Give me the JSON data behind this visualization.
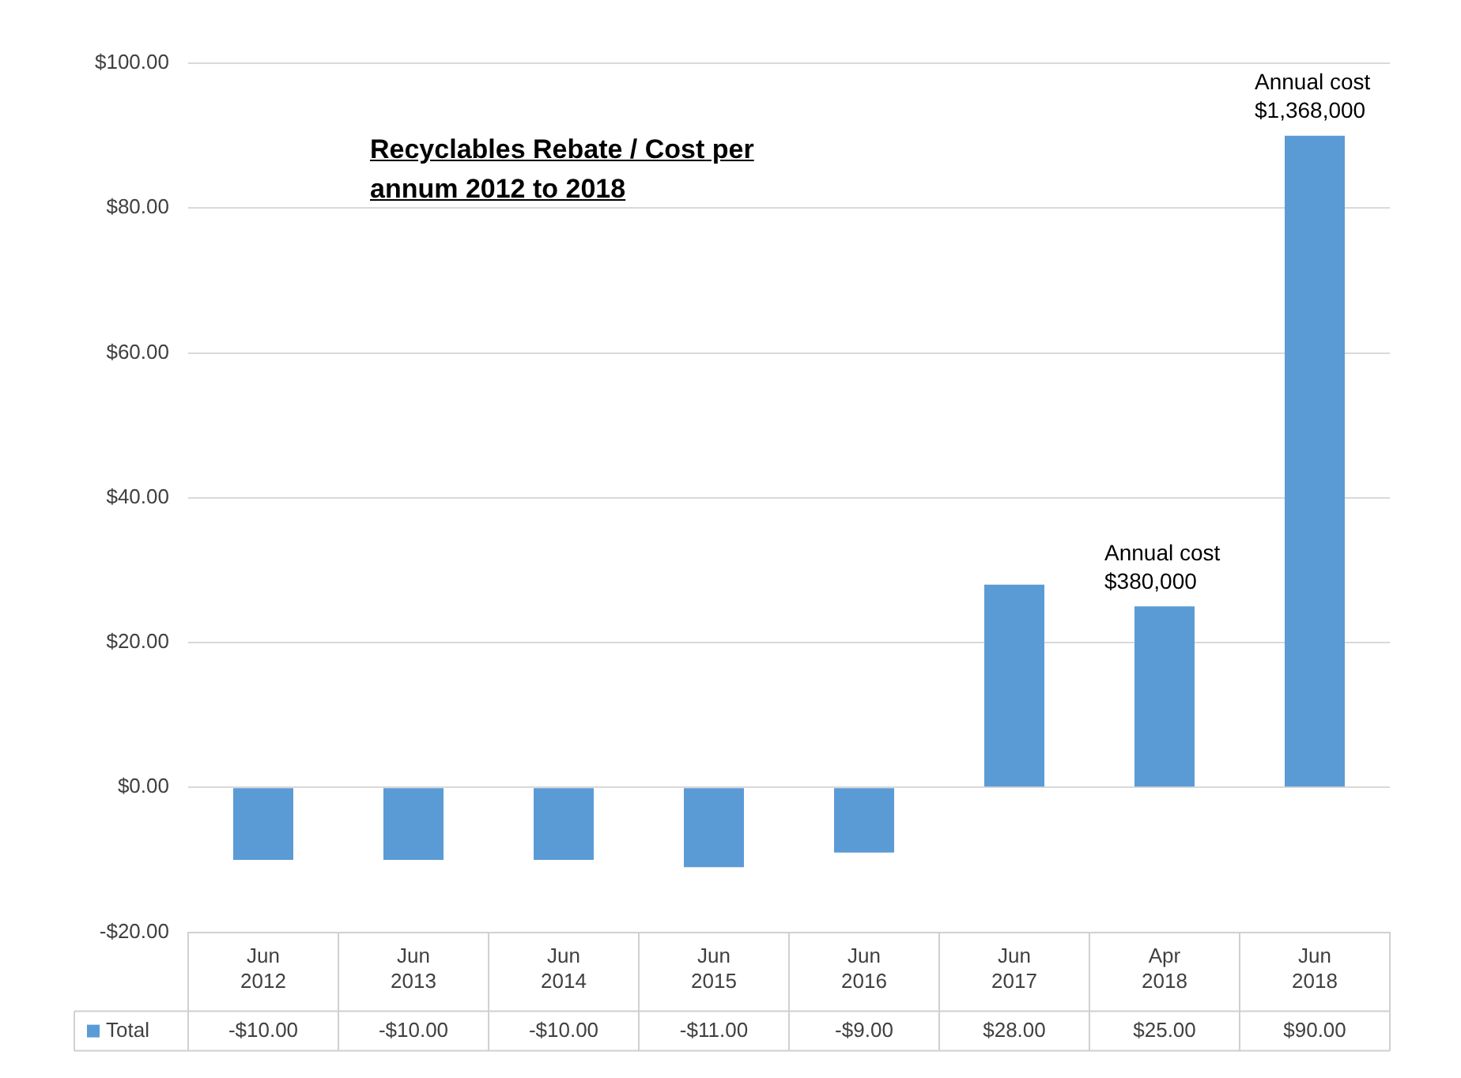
{
  "chart_data": {
    "type": "bar",
    "title": "Recyclables Rebate / Cost per annum 2012 to 2018",
    "categories": [
      "Jun 2012",
      "Jun 2013",
      "Jun 2014",
      "Jun 2015",
      "Jun 2016",
      "Jun 2017",
      "Apr 2018",
      "Jun 2018"
    ],
    "series": [
      {
        "name": "Total",
        "color": "#5b9bd5",
        "values": [
          -10,
          -10,
          -10,
          -11,
          -9,
          28,
          25,
          90
        ],
        "value_labels": [
          "-$10.00",
          "-$10.00",
          "-$10.00",
          "-$11.00",
          "-$9.00",
          "$28.00",
          "$25.00",
          "$90.00"
        ]
      }
    ],
    "ylim": [
      -20,
      100
    ],
    "yticks": [
      {
        "value": -20,
        "label": "-$20.00"
      },
      {
        "value": 0,
        "label": "$0.00"
      },
      {
        "value": 20,
        "label": "$20.00"
      },
      {
        "value": 40,
        "label": "$40.00"
      },
      {
        "value": 60,
        "label": "$60.00"
      },
      {
        "value": 80,
        "label": "$80.00"
      },
      {
        "value": 100,
        "label": "$100.00"
      }
    ],
    "grid": "y",
    "legend": "bottom",
    "annotations": [
      {
        "text": "Annual cost $380,000",
        "x": "Apr 2018",
        "y": 25
      },
      {
        "text": "Annual cost $1,368,000",
        "x": "Jun 2018",
        "y": 90
      }
    ]
  }
}
